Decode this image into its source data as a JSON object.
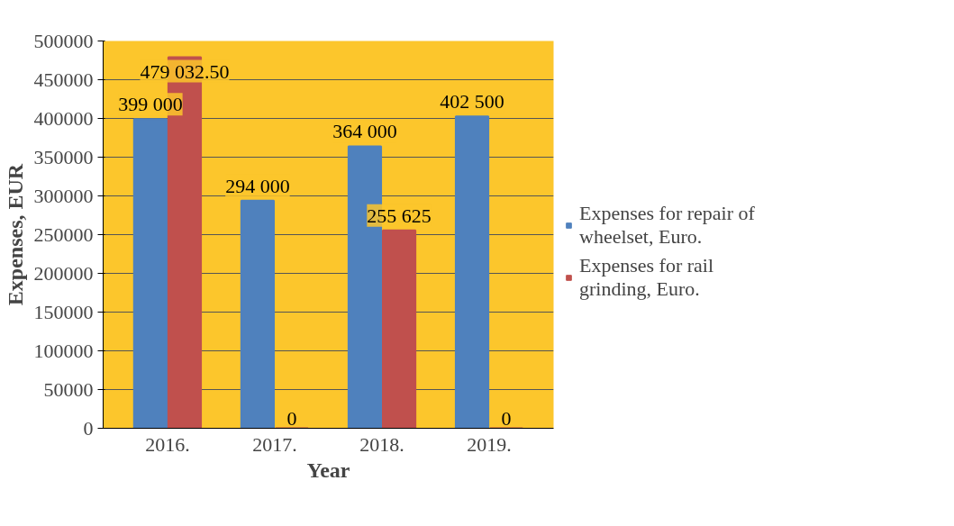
{
  "chart_data": {
    "type": "bar",
    "xlabel": "Year",
    "ylabel": "Expenses, EUR",
    "categories": [
      "2016.",
      "2017.",
      "2018.",
      "2019."
    ],
    "series": [
      {
        "name": "Expenses for repair of wheelset, Euro.",
        "color": "#4f81bd",
        "values": [
          399000,
          294000,
          364000,
          402500
        ],
        "value_labels": [
          "399 000",
          "294 000",
          "364 000",
          "402 500"
        ]
      },
      {
        "name": "Expenses for rail grinding, Euro.",
        "color": "#c0504d",
        "values": [
          479032.5,
          0,
          255625,
          0
        ],
        "value_labels": [
          "479 032.50",
          "0",
          "255 625",
          "0"
        ]
      }
    ],
    "ylim": [
      0,
      500000
    ],
    "yticks": [
      0,
      50000,
      100000,
      150000,
      200000,
      250000,
      300000,
      350000,
      400000,
      450000,
      500000
    ],
    "grid": "y",
    "legend": "right"
  }
}
